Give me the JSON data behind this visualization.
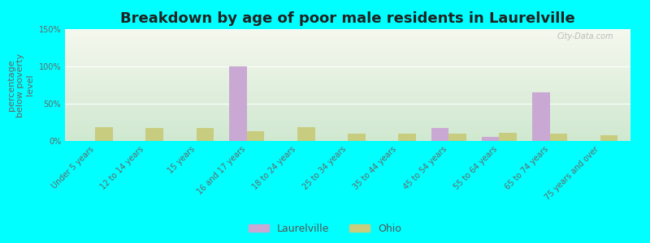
{
  "title": "Breakdown by age of poor male residents in Laurelville",
  "ylabel": "percentage\nbelow poverty\nlevel",
  "categories": [
    "Under 5 years",
    "12 to 14 years",
    "15 years",
    "16 and 17 years",
    "18 to 24 years",
    "25 to 34 years",
    "35 to 44 years",
    "45 to 54 years",
    "55 to 64 years",
    "65 to 74 years",
    "75 years and over"
  ],
  "laurelville": [
    0,
    0,
    0,
    100,
    0,
    0,
    0,
    17,
    5,
    65,
    0
  ],
  "ohio": [
    19,
    17,
    17,
    13,
    19,
    10,
    10,
    10,
    11,
    10,
    8
  ],
  "laurelville_color": "#c9a8d4",
  "ohio_color": "#c8cc7e",
  "bg_color": "#00ffff",
  "grad_top": "#f5f8ee",
  "grad_bottom": "#d0e8d0",
  "ylim_max": 150,
  "yticks": [
    0,
    50,
    100,
    150
  ],
  "ytick_labels": [
    "0%",
    "50%",
    "100%",
    "150%"
  ],
  "bar_width": 0.35,
  "title_fontsize": 13,
  "axis_label_fontsize": 8,
  "tick_fontsize": 7,
  "legend_fontsize": 9,
  "watermark": "City-Data.com"
}
